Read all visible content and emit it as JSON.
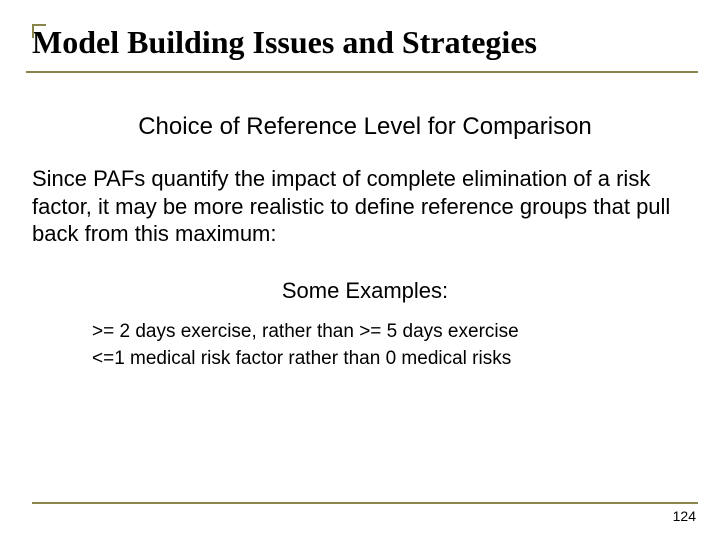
{
  "colors": {
    "accent": "#8a854a",
    "text": "#000000",
    "background": "#ffffff"
  },
  "title": "Model Building Issues and Strategies",
  "subtitle": "Choice of Reference Level for Comparison",
  "body": "Since PAFs quantify the impact of complete elimination of a risk factor, it may be more realistic to define reference groups that pull back from this maximum:",
  "examples_heading": "Some Examples:",
  "examples": [
    ">= 2 days exercise, rather than >= 5 days exercise",
    "<=1 medical risk factor rather than 0 medical risks"
  ],
  "page_number": "124",
  "typography": {
    "title_font": "Times New Roman",
    "body_font": "Arial",
    "title_size_pt": 32,
    "subtitle_size_pt": 24,
    "body_size_pt": 22,
    "example_size_pt": 19,
    "pagenum_size_pt": 14
  }
}
